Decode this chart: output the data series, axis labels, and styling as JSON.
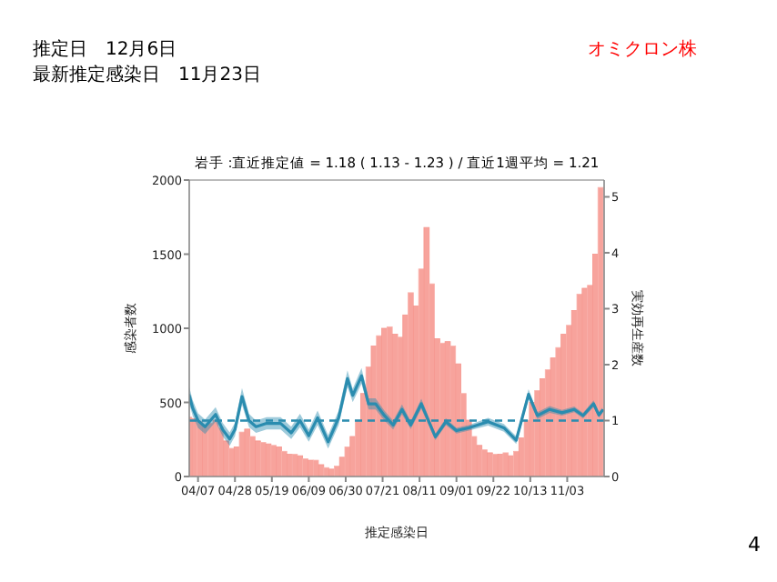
{
  "chart_data": {
    "type": "bar",
    "title": "岩手 :直近推定値 = 1.18 ( 1.13 - 1.23 ) / 直近1週平均 = 1.21",
    "xlabel": "推定感染日",
    "ylabel": "感染者数",
    "y2label": "実効再生産数",
    "annotations": [
      "推定日　12月6日",
      "最新推定感染日　11月23日",
      "オミクロン株",
      "4"
    ],
    "xlim": [
      "--04-02",
      "--11-24"
    ],
    "xticks": [
      {
        "value": "--04-07",
        "label": "04/07"
      },
      {
        "value": "--04-28",
        "label": "04/28"
      },
      {
        "value": "--05-19",
        "label": "05/19"
      },
      {
        "value": "--06-09",
        "label": "06/09"
      },
      {
        "value": "--06-30",
        "label": "06/30"
      },
      {
        "value": "--07-21",
        "label": "07/21"
      },
      {
        "value": "--08-11",
        "label": "08/11"
      },
      {
        "value": "--09-01",
        "label": "09/01"
      },
      {
        "value": "--09-22",
        "label": "09/22"
      },
      {
        "value": "--10-13",
        "label": "10/13"
      },
      {
        "value": "--11-03",
        "label": "11/03"
      }
    ],
    "ylim": [
      0,
      2000
    ],
    "yticks": [
      0,
      500,
      1000,
      1500,
      2000
    ],
    "y2lim": [
      0,
      5.3
    ],
    "y2ticks": [
      0,
      1,
      2,
      3,
      4,
      5
    ],
    "ref_lines": [
      {
        "axis": "y2",
        "value": 1,
        "color": "#2a8caf",
        "line_style": "dashed"
      }
    ],
    "series": [
      {
        "color": "#f7a39c",
        "x": [
          "--04-02",
          "--04-05",
          "--04-08",
          "--04-11",
          "--04-14",
          "--04-17",
          "--04-20",
          "--04-23",
          "--04-26",
          "--04-29",
          "--05-02",
          "--05-05",
          "--05-08",
          "--05-11",
          "--05-14",
          "--05-17",
          "--05-20",
          "--05-23",
          "--05-26",
          "--05-29",
          "--06-01",
          "--06-04",
          "--06-07",
          "--06-10",
          "--06-13",
          "--06-16",
          "--06-19",
          "--06-22",
          "--06-25",
          "--06-28",
          "--07-01",
          "--07-04",
          "--07-07",
          "--07-10",
          "--07-13",
          "--07-16",
          "--07-19",
          "--07-22",
          "--07-25",
          "--07-28",
          "--07-31",
          "--08-03",
          "--08-06",
          "--08-09",
          "--08-12",
          "--08-15",
          "--08-18",
          "--08-21",
          "--08-24",
          "--08-27",
          "--08-30",
          "--09-02",
          "--09-05",
          "--09-08",
          "--09-11",
          "--09-14",
          "--09-17",
          "--09-20",
          "--09-23",
          "--09-26",
          "--09-29",
          "--10-02",
          "--10-05",
          "--10-08",
          "--10-11",
          "--10-14",
          "--10-17",
          "--10-20",
          "--10-23",
          "--10-26",
          "--10-29",
          "--11-01",
          "--11-04",
          "--11-07",
          "--11-10",
          "--11-13",
          "--11-16",
          "--11-19",
          "--11-22"
        ],
        "values": [
          400,
          390,
          370,
          340,
          360,
          380,
          330,
          240,
          190,
          200,
          300,
          320,
          270,
          240,
          230,
          220,
          210,
          200,
          170,
          150,
          150,
          140,
          120,
          110,
          110,
          80,
          60,
          50,
          70,
          130,
          200,
          270,
          380,
          560,
          740,
          880,
          950,
          1000,
          1010,
          960,
          940,
          1090,
          1240,
          1150,
          1400,
          1680,
          1300,
          930,
          900,
          910,
          880,
          760,
          560,
          380,
          270,
          210,
          180,
          160,
          150,
          150,
          160,
          140,
          170,
          260,
          380,
          500,
          580,
          660,
          720,
          800,
          870,
          960,
          1020,
          1120,
          1230,
          1270,
          1290,
          1500,
          1950
        ]
      },
      {
        "type": "line",
        "axis": "y2",
        "color": "#2a8caf",
        "x": [
          "--04-02",
          "--04-04",
          "--04-07",
          "--04-11",
          "--04-17",
          "--04-21",
          "--04-25",
          "--04-28",
          "--05-02",
          "--05-06",
          "--05-10",
          "--05-16",
          "--05-24",
          "--05-30",
          "--06-04",
          "--06-09",
          "--06-14",
          "--06-20",
          "--06-26",
          "--07-01",
          "--07-04",
          "--07-09",
          "--07-13",
          "--07-17",
          "--07-22",
          "--07-27",
          "--08-01",
          "--08-06",
          "--08-12",
          "--08-20",
          "--08-26",
          "--09-01",
          "--09-08",
          "--09-19",
          "--09-28",
          "--10-05",
          "--10-12",
          "--10-17",
          "--10-24",
          "--10-31",
          "--11-07",
          "--11-12",
          "--11-18",
          "--11-21",
          "--11-23"
        ],
        "values": [
          1.45,
          1.22,
          1.0,
          0.89,
          1.11,
          0.84,
          0.67,
          0.84,
          1.43,
          1.0,
          0.89,
          0.95,
          0.95,
          0.78,
          1.0,
          0.73,
          1.05,
          0.62,
          1.05,
          1.75,
          1.45,
          1.8,
          1.3,
          1.3,
          1.09,
          0.92,
          1.2,
          0.92,
          1.3,
          0.71,
          0.98,
          0.82,
          0.87,
          0.98,
          0.87,
          0.65,
          1.47,
          1.09,
          1.2,
          1.14,
          1.2,
          1.09,
          1.3,
          1.1,
          1.18
        ],
        "lower": [
          1.3,
          1.08,
          0.87,
          0.76,
          0.98,
          0.72,
          0.55,
          0.72,
          1.28,
          0.88,
          0.78,
          0.84,
          0.84,
          0.67,
          0.88,
          0.62,
          0.92,
          0.5,
          0.92,
          1.6,
          1.33,
          1.66,
          1.2,
          1.2,
          1.0,
          0.84,
          1.11,
          0.85,
          1.21,
          0.65,
          0.92,
          0.77,
          0.82,
          0.91,
          0.8,
          0.58,
          1.38,
          1.03,
          1.14,
          1.09,
          1.15,
          1.04,
          1.24,
          1.05,
          1.13
        ],
        "upper": [
          1.6,
          1.36,
          1.13,
          1.02,
          1.24,
          0.96,
          0.79,
          0.96,
          1.58,
          1.12,
          1.0,
          1.06,
          1.06,
          0.89,
          1.12,
          0.84,
          1.18,
          0.74,
          1.18,
          1.9,
          1.57,
          1.94,
          1.4,
          1.4,
          1.18,
          1.0,
          1.29,
          0.99,
          1.39,
          0.77,
          1.04,
          0.87,
          0.92,
          1.05,
          0.94,
          0.72,
          1.56,
          1.15,
          1.26,
          1.19,
          1.25,
          1.14,
          1.36,
          1.15,
          1.23
        ]
      }
    ]
  }
}
